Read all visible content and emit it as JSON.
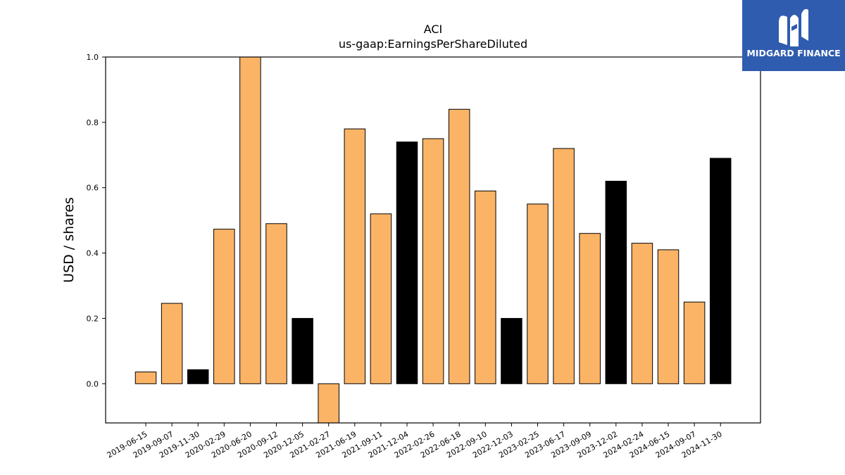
{
  "chart_data": {
    "type": "bar",
    "title": "ACI",
    "subtitle": "us-gaap:EarningsPerShareDiluted",
    "ylabel": "USD / shares",
    "xlabel": "",
    "ylim": [
      -0.12,
      1.0
    ],
    "yticks": [
      "0.0",
      "0.2",
      "0.4",
      "0.6",
      "0.8",
      "1.0"
    ],
    "categories": [
      "2019-06-15",
      "2019-09-07",
      "2019-11-30",
      "2020-02-29",
      "2020-06-20",
      "2020-09-12",
      "2020-12-05",
      "2021-02-27",
      "2021-06-19",
      "2021-09-11",
      "2021-12-04",
      "2022-02-26",
      "2022-06-18",
      "2022-09-10",
      "2022-12-03",
      "2023-02-25",
      "2023-06-17",
      "2023-09-09",
      "2023-12-02",
      "2024-02-24",
      "2024-06-15",
      "2024-09-07",
      "2024-11-30"
    ],
    "values": [
      0.036,
      0.246,
      0.043,
      0.473,
      1.0,
      0.49,
      0.2,
      -0.14,
      0.78,
      0.52,
      0.74,
      0.75,
      0.84,
      0.59,
      0.2,
      0.55,
      0.72,
      0.46,
      0.62,
      0.43,
      0.41,
      0.25,
      0.69
    ],
    "colors": [
      "#fbb466",
      "#fbb466",
      "#000000",
      "#fbb466",
      "#fbb466",
      "#fbb466",
      "#000000",
      "#fbb466",
      "#fbb466",
      "#fbb466",
      "#000000",
      "#fbb466",
      "#fbb466",
      "#fbb466",
      "#000000",
      "#fbb466",
      "#fbb466",
      "#fbb466",
      "#000000",
      "#fbb466",
      "#fbb466",
      "#fbb466",
      "#000000"
    ],
    "grid": false,
    "legend": "none"
  },
  "logo": {
    "text": "MIDGARD FINANCE",
    "color": "#2f5caf"
  }
}
